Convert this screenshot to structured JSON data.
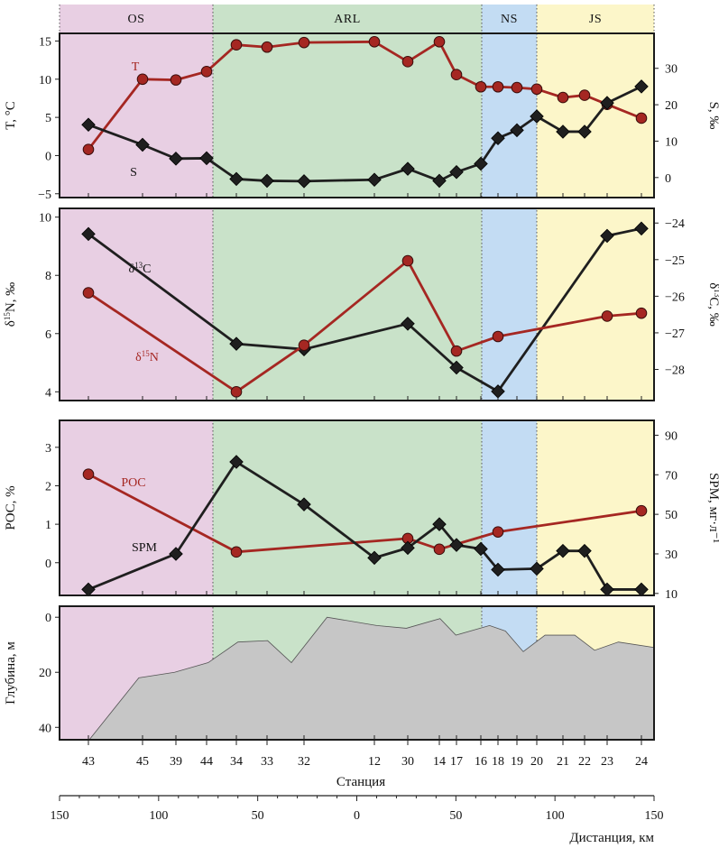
{
  "colors": {
    "zone_OS": "#e8cfe3",
    "zone_ARL": "#c9e2c9",
    "zone_NS": "#c3dcf3",
    "zone_JS": "#fcf6c9",
    "red_series": "#a52722",
    "black_series": "#1f1f1f",
    "bathymetry_fill": "#c6c6c6"
  },
  "zones": [
    {
      "name": "OS",
      "from": "43",
      "to": "44"
    },
    {
      "name": "ARL",
      "from": "34",
      "to": "16"
    },
    {
      "name": "NS",
      "from": "18",
      "to": "19"
    },
    {
      "name": "JS",
      "from": "20",
      "to": "24"
    }
  ],
  "stations": [
    "43",
    "45",
    "39",
    "44",
    "34",
    "33",
    "32",
    "12",
    "30",
    "14",
    "17",
    "16",
    "18",
    "19",
    "20",
    "21",
    "22",
    "23",
    "24"
  ],
  "xlabel_station": "Станция",
  "xlabel_distance": "Дистанция, км",
  "distance_ticks": [
    "150",
    "100",
    "50",
    "0",
    "50",
    "100",
    "150"
  ],
  "chart_data": [
    {
      "type": "line",
      "panel": "temperature-salinity",
      "ylabel_left": "T, °C",
      "ylabel_right": "S, ‰",
      "ylim_left": [
        -5.5,
        16
      ],
      "ylim_right": [
        -5.5,
        39.6
      ],
      "yticks_left": [
        -5,
        0,
        5,
        10,
        15
      ],
      "yticks_right": [
        0,
        10,
        20,
        30
      ],
      "series": [
        {
          "name": "T",
          "axis": "left",
          "color": "red",
          "marker": "circle",
          "stations": [
            "43",
            "45",
            "39",
            "44",
            "34",
            "33",
            "32",
            "12",
            "30",
            "14",
            "17",
            "16",
            "18",
            "19",
            "20",
            "21",
            "22",
            "23",
            "24"
          ],
          "values": [
            0.8,
            10.0,
            9.9,
            11.0,
            14.5,
            14.2,
            14.8,
            14.9,
            12.3,
            14.9,
            10.6,
            9.0,
            9.0,
            8.9,
            8.7,
            7.6,
            7.9,
            6.7,
            4.9
          ]
        },
        {
          "name": "S",
          "axis": "right",
          "color": "black",
          "marker": "diamond",
          "stations": [
            "43",
            "45",
            "39",
            "44",
            "34",
            "33",
            "32",
            "12",
            "30",
            "14",
            "17",
            "16",
            "18",
            "19",
            "20",
            "21",
            "22",
            "23",
            "24"
          ],
          "values": [
            14.5,
            9.0,
            5.2,
            5.3,
            -0.4,
            -0.9,
            -1.0,
            -0.6,
            2.4,
            -0.9,
            1.5,
            3.8,
            10.8,
            13.0,
            16.8,
            12.6,
            12.6,
            20.5,
            25.0
          ]
        }
      ]
    },
    {
      "type": "line",
      "panel": "isotopes",
      "ylabel_left": "δ15N, ‰",
      "ylabel_right": "δ13C, ‰",
      "ylim_left": [
        3.7,
        10.3
      ],
      "ylim_right": [
        -28.85,
        -23.6
      ],
      "yticks_left": [
        4,
        6,
        8,
        10
      ],
      "yticks_right": [
        -28,
        -27,
        -26,
        -25,
        -24
      ],
      "series": [
        {
          "name": "δ13C",
          "axis": "right",
          "color": "black",
          "marker": "diamond",
          "stations": [
            "43",
            "34",
            "32",
            "30",
            "17",
            "18",
            "23",
            "24"
          ],
          "values": [
            -24.3,
            -27.3,
            -27.45,
            -26.75,
            -27.95,
            -28.6,
            -24.35,
            -24.15
          ]
        },
        {
          "name": "δ15N",
          "axis": "left",
          "color": "red",
          "marker": "circle",
          "stations": [
            "43",
            "34",
            "32",
            "30",
            "17",
            "18",
            "23",
            "24"
          ],
          "values": [
            7.4,
            4.0,
            5.6,
            8.5,
            5.4,
            5.9,
            6.6,
            6.7
          ]
        }
      ]
    },
    {
      "type": "line",
      "panel": "poc-spm",
      "ylabel_left": "POC, %",
      "ylabel_right": "SPM, мг·л⁻¹",
      "ylim_left": [
        -0.85,
        3.7
      ],
      "ylim_right": [
        9.0,
        97.5
      ],
      "yticks_left": [
        0,
        1,
        2,
        3
      ],
      "yticks_right": [
        10,
        30,
        50,
        70,
        90
      ],
      "series": [
        {
          "name": "POC",
          "axis": "left",
          "color": "red",
          "marker": "circle",
          "stations": [
            "43",
            "34",
            "30",
            "14",
            "18",
            "24"
          ],
          "values": [
            2.3,
            0.28,
            0.63,
            0.35,
            0.8,
            1.35
          ]
        },
        {
          "name": "SPM",
          "axis": "right",
          "color": "black",
          "marker": "diamond",
          "stations": [
            "43",
            "39",
            "34",
            "32",
            "12",
            "30",
            "14",
            "17",
            "16",
            "18",
            "20",
            "21",
            "22",
            "23",
            "24"
          ],
          "values": [
            12.0,
            30.0,
            76.5,
            55.0,
            28.0,
            33.0,
            45.0,
            34.5,
            32.5,
            22.0,
            22.5,
            31.5,
            31.5,
            12.0,
            12.0
          ]
        }
      ]
    },
    {
      "type": "area",
      "panel": "bathymetry",
      "ylabel": "Глубина, м",
      "ylim": [
        -4,
        44.5
      ],
      "yticks": [
        0,
        20,
        40
      ],
      "x_unit": "km",
      "x_domain": [
        -150,
        150
      ],
      "profile": [
        [
          -135,
          44.5
        ],
        [
          -110,
          22
        ],
        [
          -92,
          20
        ],
        [
          -75,
          16.5
        ],
        [
          -60,
          9
        ],
        [
          -45,
          8.5
        ],
        [
          -33,
          16.5
        ],
        [
          -15,
          0
        ],
        [
          10,
          3
        ],
        [
          25,
          4
        ],
        [
          42,
          0.5
        ],
        [
          50,
          6.5
        ],
        [
          67,
          3
        ],
        [
          75,
          5
        ],
        [
          84,
          12.5
        ],
        [
          95,
          6.5
        ],
        [
          110,
          6.5
        ],
        [
          120,
          12
        ],
        [
          132,
          9
        ],
        [
          150,
          11
        ]
      ]
    }
  ]
}
